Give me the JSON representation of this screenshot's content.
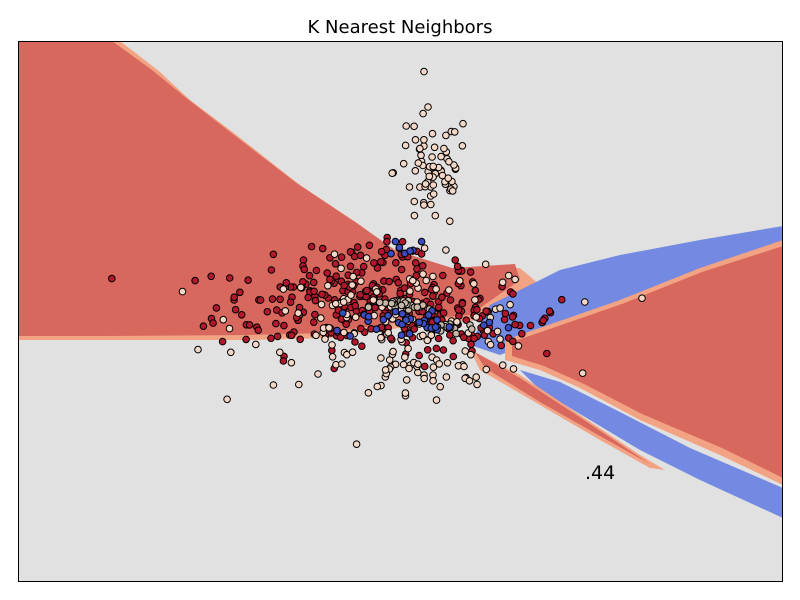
{
  "chart_data": {
    "type": "scatter",
    "title": "K Nearest Neighbors",
    "xlabel": "",
    "ylabel": "",
    "xticks": "hidden",
    "yticks": "hidden",
    "grid": false,
    "legend": "none",
    "annotation": ".44",
    "background": "decision-boundary-contour",
    "colors": {
      "region_red": "#d8675e",
      "region_gray": "#e1e1e1",
      "region_blue": "#7389e2",
      "region_edge": "#f2a383",
      "class_red_point": "#b2182b",
      "class_light_point": "#f5d7c6",
      "class_blue_point": "#3b4cc0",
      "class_tan_point": "#c7b8a8"
    },
    "series": [
      {
        "class": "red",
        "color": "#b2182b",
        "clusters": [
          {
            "cx": -0.35,
            "cy": 0.05,
            "sx": 0.55,
            "sy": 0.22,
            "n": 230
          },
          {
            "cx": 0.55,
            "cy": -0.1,
            "sx": 0.35,
            "sy": 0.12,
            "n": 70
          },
          {
            "cx": -0.2,
            "cy": 0.45,
            "sx": 0.35,
            "sy": 0.1,
            "n": 40
          }
        ]
      },
      {
        "class": "light",
        "color": "#f5d7c6",
        "clusters": [
          {
            "cx": 0.25,
            "cy": 1.3,
            "sx": 0.15,
            "sy": 0.28,
            "n": 70
          },
          {
            "cx": 0.0,
            "cy": -0.1,
            "sx": 0.6,
            "sy": 0.28,
            "n": 130
          },
          {
            "cx": 0.1,
            "cy": -0.55,
            "sx": 0.3,
            "sy": 0.12,
            "n": 35
          }
        ]
      },
      {
        "class": "tan",
        "color": "#c7b8a8",
        "clusters": [
          {
            "cx": 0.0,
            "cy": 0.05,
            "sx": 0.12,
            "sy": 0.03,
            "n": 25
          },
          {
            "cx": 0.35,
            "cy": -0.15,
            "sx": 0.12,
            "sy": 0.03,
            "n": 15
          }
        ]
      },
      {
        "class": "blue",
        "color": "#3b4cc0",
        "clusters": [
          {
            "cx": 0.1,
            "cy": -0.1,
            "sx": 0.35,
            "sy": 0.08,
            "n": 35
          },
          {
            "cx": 0.05,
            "cy": 0.6,
            "sx": 0.1,
            "sy": 0.05,
            "n": 8
          }
        ]
      }
    ],
    "xlim": [
      -3.0,
      3.0
    ],
    "ylim": [
      -2.5,
      2.5
    ]
  }
}
